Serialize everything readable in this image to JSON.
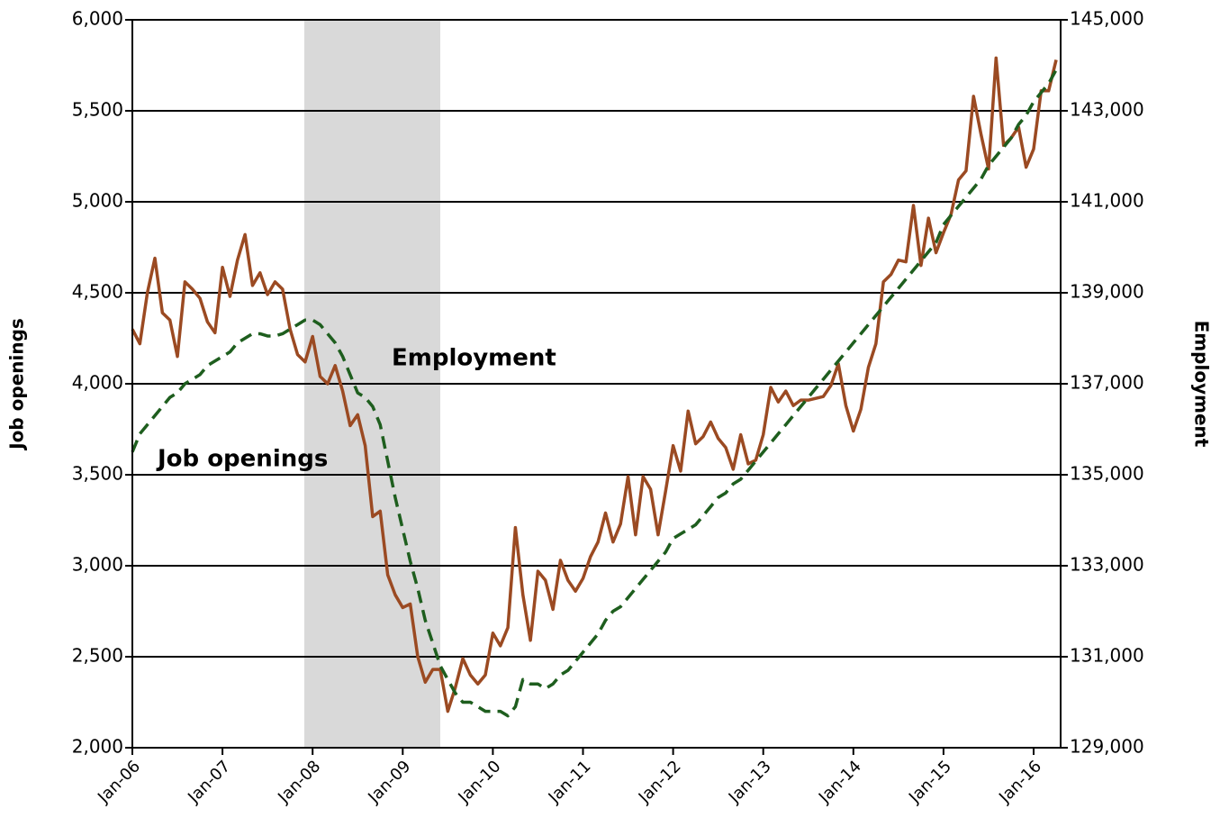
{
  "chart_data": {
    "type": "line",
    "categories": [
      "Jan-06",
      null,
      null,
      null,
      null,
      null,
      null,
      null,
      null,
      null,
      null,
      null,
      "Jan-07",
      null,
      null,
      null,
      null,
      null,
      null,
      null,
      null,
      null,
      null,
      null,
      "Jan-08",
      null,
      null,
      null,
      null,
      null,
      null,
      null,
      null,
      null,
      null,
      null,
      "Jan-09",
      null,
      null,
      null,
      null,
      null,
      null,
      null,
      null,
      null,
      null,
      null,
      "Jan-10",
      null,
      null,
      null,
      null,
      null,
      null,
      null,
      null,
      null,
      null,
      null,
      "Jan-11",
      null,
      null,
      null,
      null,
      null,
      null,
      null,
      null,
      null,
      null,
      null,
      "Jan-12",
      null,
      null,
      null,
      null,
      null,
      null,
      null,
      null,
      null,
      null,
      null,
      "Jan-13",
      null,
      null,
      null,
      null,
      null,
      null,
      null,
      null,
      null,
      null,
      null,
      "Jan-14",
      null,
      null,
      null,
      null,
      null,
      null,
      null,
      null,
      null,
      null,
      null,
      "Jan-15",
      null,
      null,
      null,
      null,
      null,
      null,
      null,
      null,
      null,
      null,
      null,
      "Jan-16",
      null,
      null,
      null
    ],
    "y_label": "Job openings",
    "y2_label": "Employment",
    "annotations": [
      {
        "text": "Employment",
        "color": "#1e5e1e"
      },
      {
        "text": "Job openings",
        "color": "#9b4a22"
      }
    ],
    "series": [
      {
        "name": "Job openings",
        "color": "#9b4a22",
        "axis": "y",
        "values": [
          4300,
          4220,
          4500,
          4690,
          4390,
          4350,
          4150,
          4560,
          4520,
          4470,
          4340,
          4280,
          4640,
          4480,
          4680,
          4820,
          4540,
          4610,
          4490,
          4560,
          4520,
          4300,
          4160,
          4120,
          4260,
          4040,
          4000,
          4100,
          3960,
          3770,
          3830,
          3660,
          3270,
          3300,
          2950,
          2840,
          2770,
          2790,
          2500,
          2360,
          2430,
          2430,
          2200,
          2330,
          2490,
          2400,
          2350,
          2400,
          2630,
          2560,
          2660,
          3210,
          2840,
          2590,
          2970,
          2920,
          2760,
          3030,
          2920,
          2860,
          2930,
          3050,
          3130,
          3290,
          3130,
          3230,
          3490,
          3170,
          3490,
          3420,
          3170,
          3410,
          3660,
          3520,
          3850,
          3670,
          3710,
          3790,
          3700,
          3650,
          3530,
          3720,
          3560,
          3580,
          3720,
          3980,
          3900,
          3960,
          3880,
          3910,
          3910,
          3920,
          3930,
          3990,
          4110,
          3880,
          3740,
          3860,
          4090,
          4220,
          4560,
          4600,
          4680,
          4670,
          4980,
          4650,
          4910,
          4720,
          4830,
          4930,
          5120,
          5170,
          5580,
          5370,
          5180,
          5790,
          5310,
          5350,
          5410,
          5190,
          5290,
          5610,
          5610,
          5780
        ]
      },
      {
        "name": "Employment",
        "color": "#1e5e1e",
        "axis": "y2",
        "dashed": true,
        "values": [
          135500,
          135900,
          136100,
          136300,
          136500,
          136700,
          136800,
          137000,
          137100,
          137200,
          137400,
          137500,
          137600,
          137700,
          137900,
          138000,
          138100,
          138100,
          138050,
          138050,
          138100,
          138200,
          138300,
          138400,
          138400,
          138300,
          138100,
          137900,
          137600,
          137200,
          136800,
          136700,
          136500,
          136100,
          135300,
          134500,
          133800,
          133100,
          132500,
          131800,
          131300,
          130800,
          130500,
          130200,
          130000,
          130000,
          129900,
          129800,
          129800,
          129800,
          129700,
          129900,
          130500,
          130400,
          130400,
          130300,
          130400,
          130600,
          130700,
          130900,
          131100,
          131300,
          131500,
          131800,
          132000,
          132100,
          132300,
          132500,
          132700,
          132900,
          133100,
          133300,
          133600,
          133700,
          133800,
          133900,
          134100,
          134300,
          134500,
          134600,
          134800,
          134900,
          135100,
          135300,
          135500,
          135700,
          135900,
          136100,
          136300,
          136500,
          136700,
          136900,
          137100,
          137300,
          137500,
          137700,
          137900,
          138100,
          138300,
          138500,
          138700,
          138900,
          139100,
          139300,
          139500,
          139700,
          139900,
          140100,
          140500,
          140700,
          140900,
          141100,
          141300,
          141500,
          141800,
          142000,
          142200,
          142400,
          142700,
          142900,
          143200,
          143400,
          143600,
          143900
        ]
      }
    ],
    "ylim": [
      2000,
      6000
    ],
    "yticks": [
      {
        "value": 2000,
        "label": "2,000"
      },
      {
        "value": 2500,
        "label": "2,500"
      },
      {
        "value": 3000,
        "label": "3,000"
      },
      {
        "value": 3500,
        "label": "3,500"
      },
      {
        "value": 4000,
        "label": "4,000"
      },
      {
        "value": 4500,
        "label": "4,500"
      },
      {
        "value": 5000,
        "label": "5,000"
      },
      {
        "value": 5500,
        "label": "5,500"
      },
      {
        "value": 6000,
        "label": "6,000"
      }
    ],
    "y2lim": [
      129000,
      145000
    ],
    "y2ticks": [
      {
        "value": 129000,
        "label": "129,000"
      },
      {
        "value": 131000,
        "label": "131,000"
      },
      {
        "value": 133000,
        "label": "133,000"
      },
      {
        "value": 135000,
        "label": "135,000"
      },
      {
        "value": 137000,
        "label": "137,000"
      },
      {
        "value": 139000,
        "label": "139,000"
      },
      {
        "value": 141000,
        "label": "141,000"
      },
      {
        "value": 143000,
        "label": "143,000"
      },
      {
        "value": 145000,
        "label": "145,000"
      }
    ],
    "grid": true
  }
}
